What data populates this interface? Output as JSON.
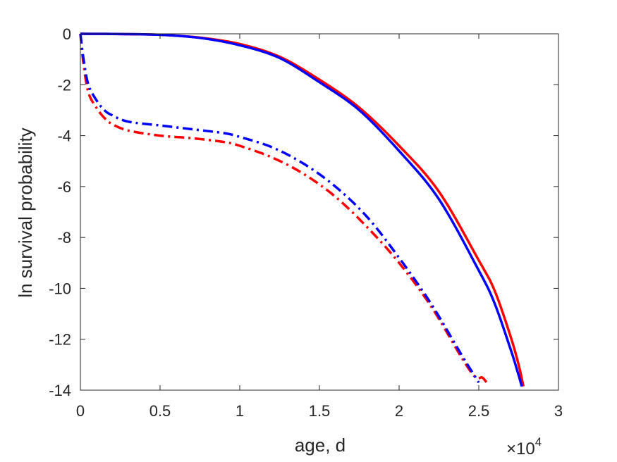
{
  "chart_data": {
    "type": "line",
    "title": "",
    "xlabel": "age, d",
    "ylabel": "ln survival probability",
    "xlim": [
      0,
      3
    ],
    "ylim": [
      -14,
      0
    ],
    "x_exponent_label": {
      "base": "×10",
      "exp": "4"
    },
    "xticks": [
      "0",
      "0.5",
      "1",
      "1.5",
      "2",
      "2.5",
      "3"
    ],
    "yticks": [
      "0",
      "-2",
      "-4",
      "-6",
      "-8",
      "-10",
      "-12",
      "-14"
    ],
    "grid": false,
    "series": [
      {
        "color": "#ff0000",
        "style": "solid",
        "x": [
          0,
          0.25,
          0.5,
          0.75,
          1.0,
          1.25,
          1.5,
          1.75,
          2.0,
          2.25,
          2.5,
          2.6,
          2.7,
          2.75,
          2.78
        ],
        "y": [
          0,
          -0.01,
          -0.04,
          -0.15,
          -0.4,
          -0.9,
          -1.8,
          -2.9,
          -4.4,
          -6.2,
          -8.9,
          -10.1,
          -11.9,
          -13.0,
          -13.85
        ]
      },
      {
        "color": "#0000ff",
        "style": "solid",
        "x": [
          0,
          0.25,
          0.5,
          0.75,
          1.0,
          1.25,
          1.5,
          1.75,
          2.0,
          2.25,
          2.5,
          2.6,
          2.7,
          2.74,
          2.77
        ],
        "y": [
          0,
          -0.01,
          -0.04,
          -0.16,
          -0.45,
          -0.95,
          -1.9,
          -3.0,
          -4.6,
          -6.5,
          -9.3,
          -10.6,
          -12.4,
          -13.2,
          -13.85
        ]
      },
      {
        "color": "#ff0000",
        "style": "dashdot",
        "x": [
          0,
          0.02,
          0.05,
          0.1,
          0.15,
          0.2,
          0.3,
          0.5,
          0.7,
          0.9,
          1.0,
          1.2,
          1.4,
          1.6,
          1.8,
          2.0,
          2.2,
          2.4,
          2.48,
          2.52,
          2.55
        ],
        "y": [
          0,
          -1.2,
          -2.3,
          -2.9,
          -3.3,
          -3.55,
          -3.8,
          -4.0,
          -4.1,
          -4.25,
          -4.4,
          -4.85,
          -5.5,
          -6.4,
          -7.6,
          -9.0,
          -10.7,
          -12.8,
          -13.5,
          -13.5,
          -13.7
        ]
      },
      {
        "color": "#0000ff",
        "style": "dashdot",
        "x": [
          0,
          0.02,
          0.05,
          0.1,
          0.15,
          0.2,
          0.3,
          0.5,
          0.7,
          0.9,
          1.0,
          1.2,
          1.4,
          1.6,
          1.8,
          2.0,
          2.2,
          2.4,
          2.47,
          2.5
        ],
        "y": [
          0,
          -1.0,
          -2.0,
          -2.6,
          -3.0,
          -3.2,
          -3.45,
          -3.6,
          -3.75,
          -3.9,
          -4.05,
          -4.45,
          -5.1,
          -6.0,
          -7.2,
          -8.8,
          -10.6,
          -12.7,
          -13.4,
          -13.7
        ]
      }
    ]
  }
}
